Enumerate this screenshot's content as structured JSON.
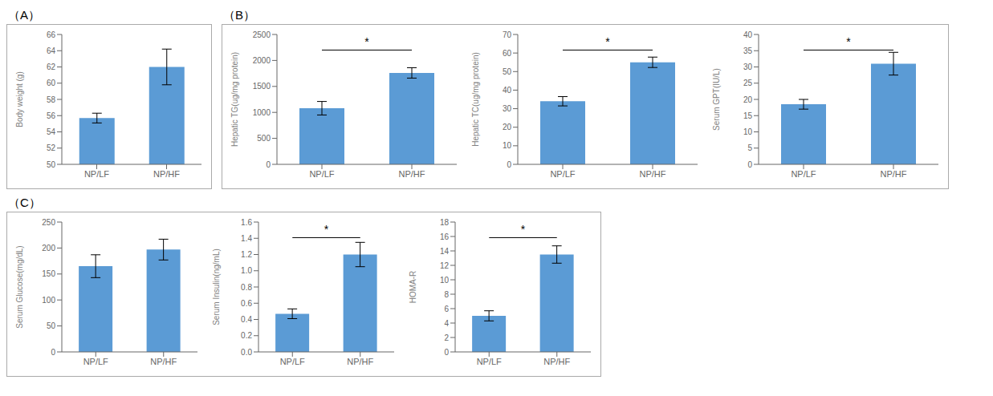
{
  "chart_data": [
    {
      "type": "bar",
      "title": "（A）",
      "categories": [
        "NP/LF",
        "NP/HF"
      ],
      "values": [
        55.7,
        62.0
      ],
      "errors": [
        0.6,
        2.2
      ],
      "color": "#5B9BD5",
      "ylabel": "Body weight (g)",
      "ylim": [
        50,
        66
      ],
      "yticks": [
        50,
        52,
        54,
        56,
        58,
        60,
        62,
        64,
        66
      ],
      "grid": false
    },
    {
      "type": "bar",
      "title": "（B）",
      "categories": [
        "NP/LF",
        "NP/HF"
      ],
      "values": [
        1080,
        1760
      ],
      "errors": [
        130,
        100
      ],
      "color": "#5B9BD5",
      "ylabel": "Hepatic TG(ug/mg protein)",
      "ylim": [
        0,
        2500
      ],
      "yticks": [
        0,
        500,
        1000,
        1500,
        2000,
        2500
      ],
      "grid": false,
      "annotation": "*"
    },
    {
      "type": "bar",
      "categories": [
        "NP/LF",
        "NP/HF"
      ],
      "values": [
        34,
        55
      ],
      "errors": [
        2.5,
        2.8
      ],
      "color": "#5B9BD5",
      "ylabel": "Hepatic TC(ug/mg protein)",
      "ylim": [
        0,
        70
      ],
      "yticks": [
        0,
        10,
        20,
        30,
        40,
        50,
        60,
        70
      ],
      "grid": false,
      "annotation": "*"
    },
    {
      "type": "bar",
      "categories": [
        "NP/LF",
        "NP/HF"
      ],
      "values": [
        18.5,
        31
      ],
      "errors": [
        1.5,
        3.5
      ],
      "color": "#5B9BD5",
      "ylabel": "Serum GPT(IU/L)",
      "ylim": [
        0,
        40
      ],
      "yticks": [
        0,
        5,
        10,
        15,
        20,
        25,
        30,
        35,
        40
      ],
      "grid": false,
      "annotation": "*"
    },
    {
      "type": "bar",
      "title": "（C）",
      "categories": [
        "NP/LF",
        "NP/HF"
      ],
      "values": [
        165,
        197
      ],
      "errors": [
        22,
        20
      ],
      "color": "#5B9BD5",
      "ylabel": "Serum Glucose(mg/dL)",
      "ylim": [
        0,
        250
      ],
      "yticks": [
        0,
        50,
        100,
        150,
        200,
        250
      ],
      "grid": false
    },
    {
      "type": "bar",
      "categories": [
        "NP/LF",
        "NP/HF"
      ],
      "values": [
        0.47,
        1.2
      ],
      "errors": [
        0.06,
        0.15
      ],
      "color": "#5B9BD5",
      "ylabel": "Serum Insulin(ng/mL)",
      "ylim": [
        0.0,
        1.6
      ],
      "yticks": [
        {
          "value": 0,
          "label": "0.0"
        },
        0.2,
        0.4,
        0.6,
        0.8,
        {
          "value": 1,
          "label": "1.0"
        },
        1.2,
        1.4,
        1.6
      ],
      "grid": false,
      "annotation": "*"
    },
    {
      "type": "bar",
      "categories": [
        "NP/LF",
        "NP/HF"
      ],
      "values": [
        5,
        13.5
      ],
      "errors": [
        0.7,
        1.2
      ],
      "color": "#5B9BD5",
      "ylabel": "HOMA-R",
      "ylim": [
        0,
        18
      ],
      "yticks": [
        0,
        2,
        4,
        6,
        8,
        10,
        12,
        14,
        16,
        18
      ],
      "grid": false,
      "annotation": "*"
    }
  ]
}
